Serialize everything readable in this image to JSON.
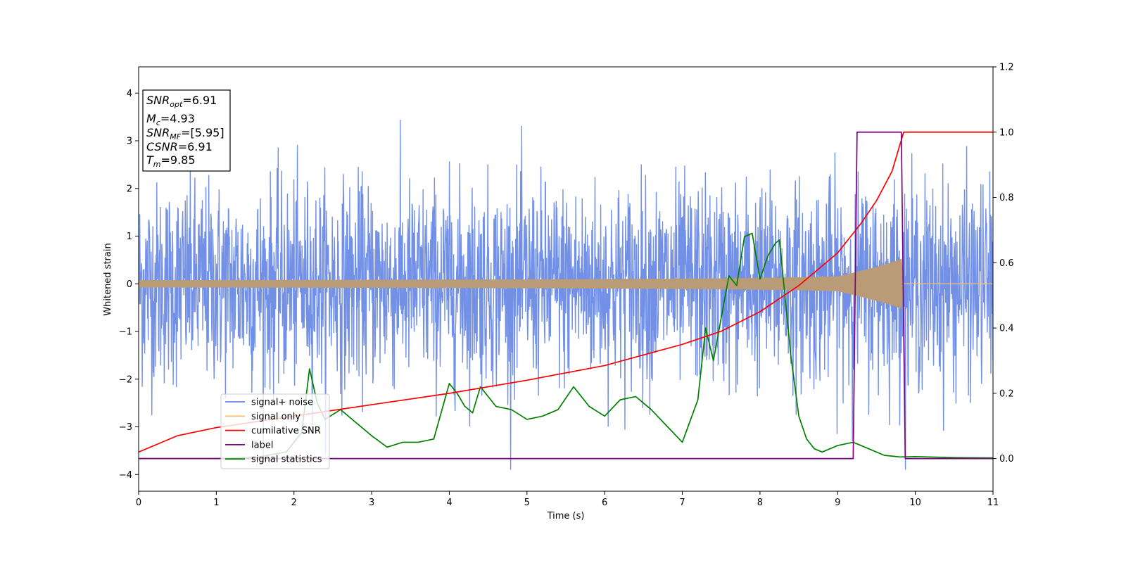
{
  "chart_data": {
    "type": "line",
    "xlabel": "Time (s)",
    "ylabel": "Whitened strain",
    "xlim": [
      0,
      11
    ],
    "ylim": [
      -4.35,
      4.55
    ],
    "y2lim": [
      -0.1,
      1.2
    ],
    "x_ticks": [
      "0",
      "1",
      "2",
      "3",
      "4",
      "5",
      "6",
      "7",
      "8",
      "9",
      "10",
      "11"
    ],
    "y_ticks": [
      "4",
      "3",
      "2",
      "1",
      "0",
      "−1",
      "−2",
      "−3",
      "−4"
    ],
    "y2_ticks": [
      "1.2",
      "1.0",
      "0.8",
      "0.6",
      "0.4",
      "0.2",
      "0.0"
    ],
    "grid": false,
    "legend_position": "lower-left",
    "annotation": [
      {
        "main": "SNR",
        "sub": "opt",
        "rest": "=6.91"
      },
      {
        "main": "M",
        "sub": "c",
        "rest": "=4.93"
      },
      {
        "main": "SNR",
        "sub": "MF",
        "rest": "=[5.95]"
      },
      {
        "main": "CSNR",
        "sub": "",
        "rest": "=6.91"
      },
      {
        "main": "T",
        "sub": "m",
        "rest": "=9.85"
      }
    ],
    "series": [
      {
        "name": "signal+ noise",
        "color": "#6b8ae6",
        "axis": "left",
        "description_kind": "noise_band",
        "approx_envelope": [
          -2.6,
          2.9
        ]
      },
      {
        "name": "signal only",
        "color": "#f5c27a",
        "axis": "left",
        "description_kind": "chirp",
        "end_time": 9.85
      },
      {
        "name": "cumilative SNR",
        "color": "#ff0000",
        "axis": "right",
        "x": [
          0,
          0.5,
          1,
          2,
          3,
          4,
          5,
          6,
          7,
          7.5,
          8,
          8.5,
          9,
          9.3,
          9.5,
          9.7,
          9.85,
          11
        ],
        "values": [
          0.02,
          0.07,
          0.095,
          0.13,
          0.165,
          0.2,
          0.24,
          0.285,
          0.35,
          0.39,
          0.45,
          0.53,
          0.63,
          0.72,
          0.79,
          0.88,
          1.0,
          1.0
        ]
      },
      {
        "name": "label",
        "color": "#800080",
        "axis": "right",
        "x": [
          0,
          9.2,
          9.25,
          9.82,
          9.87,
          11
        ],
        "values": [
          0,
          0,
          1,
          1,
          0,
          0
        ]
      },
      {
        "name": "signal statistics",
        "color": "#008000",
        "axis": "right",
        "x": [
          0,
          1,
          1.5,
          1.9,
          2.1,
          2.2,
          2.3,
          2.4,
          2.6,
          2.8,
          3.0,
          3.2,
          3.4,
          3.6,
          3.8,
          4.0,
          4.1,
          4.2,
          4.3,
          4.4,
          4.6,
          4.8,
          5.0,
          5.2,
          5.4,
          5.6,
          5.8,
          6.0,
          6.2,
          6.4,
          6.6,
          6.8,
          7.0,
          7.2,
          7.3,
          7.4,
          7.5,
          7.6,
          7.7,
          7.8,
          7.9,
          8.0,
          8.1,
          8.2,
          8.25,
          8.3,
          8.4,
          8.5,
          8.6,
          8.7,
          8.8,
          9.0,
          9.2,
          9.4,
          9.6,
          9.8,
          10,
          10.5,
          11
        ],
        "values": [
          0.0,
          0.0,
          0.003,
          0.02,
          0.08,
          0.275,
          0.17,
          0.12,
          0.15,
          0.11,
          0.07,
          0.035,
          0.05,
          0.05,
          0.06,
          0.23,
          0.2,
          0.16,
          0.14,
          0.22,
          0.16,
          0.15,
          0.12,
          0.13,
          0.15,
          0.22,
          0.16,
          0.13,
          0.18,
          0.19,
          0.15,
          0.1,
          0.05,
          0.18,
          0.4,
          0.3,
          0.43,
          0.56,
          0.53,
          0.68,
          0.69,
          0.55,
          0.62,
          0.66,
          0.67,
          0.55,
          0.31,
          0.13,
          0.06,
          0.03,
          0.02,
          0.04,
          0.05,
          0.03,
          0.01,
          0.005,
          0.006,
          0.003,
          0.002
        ]
      }
    ]
  }
}
